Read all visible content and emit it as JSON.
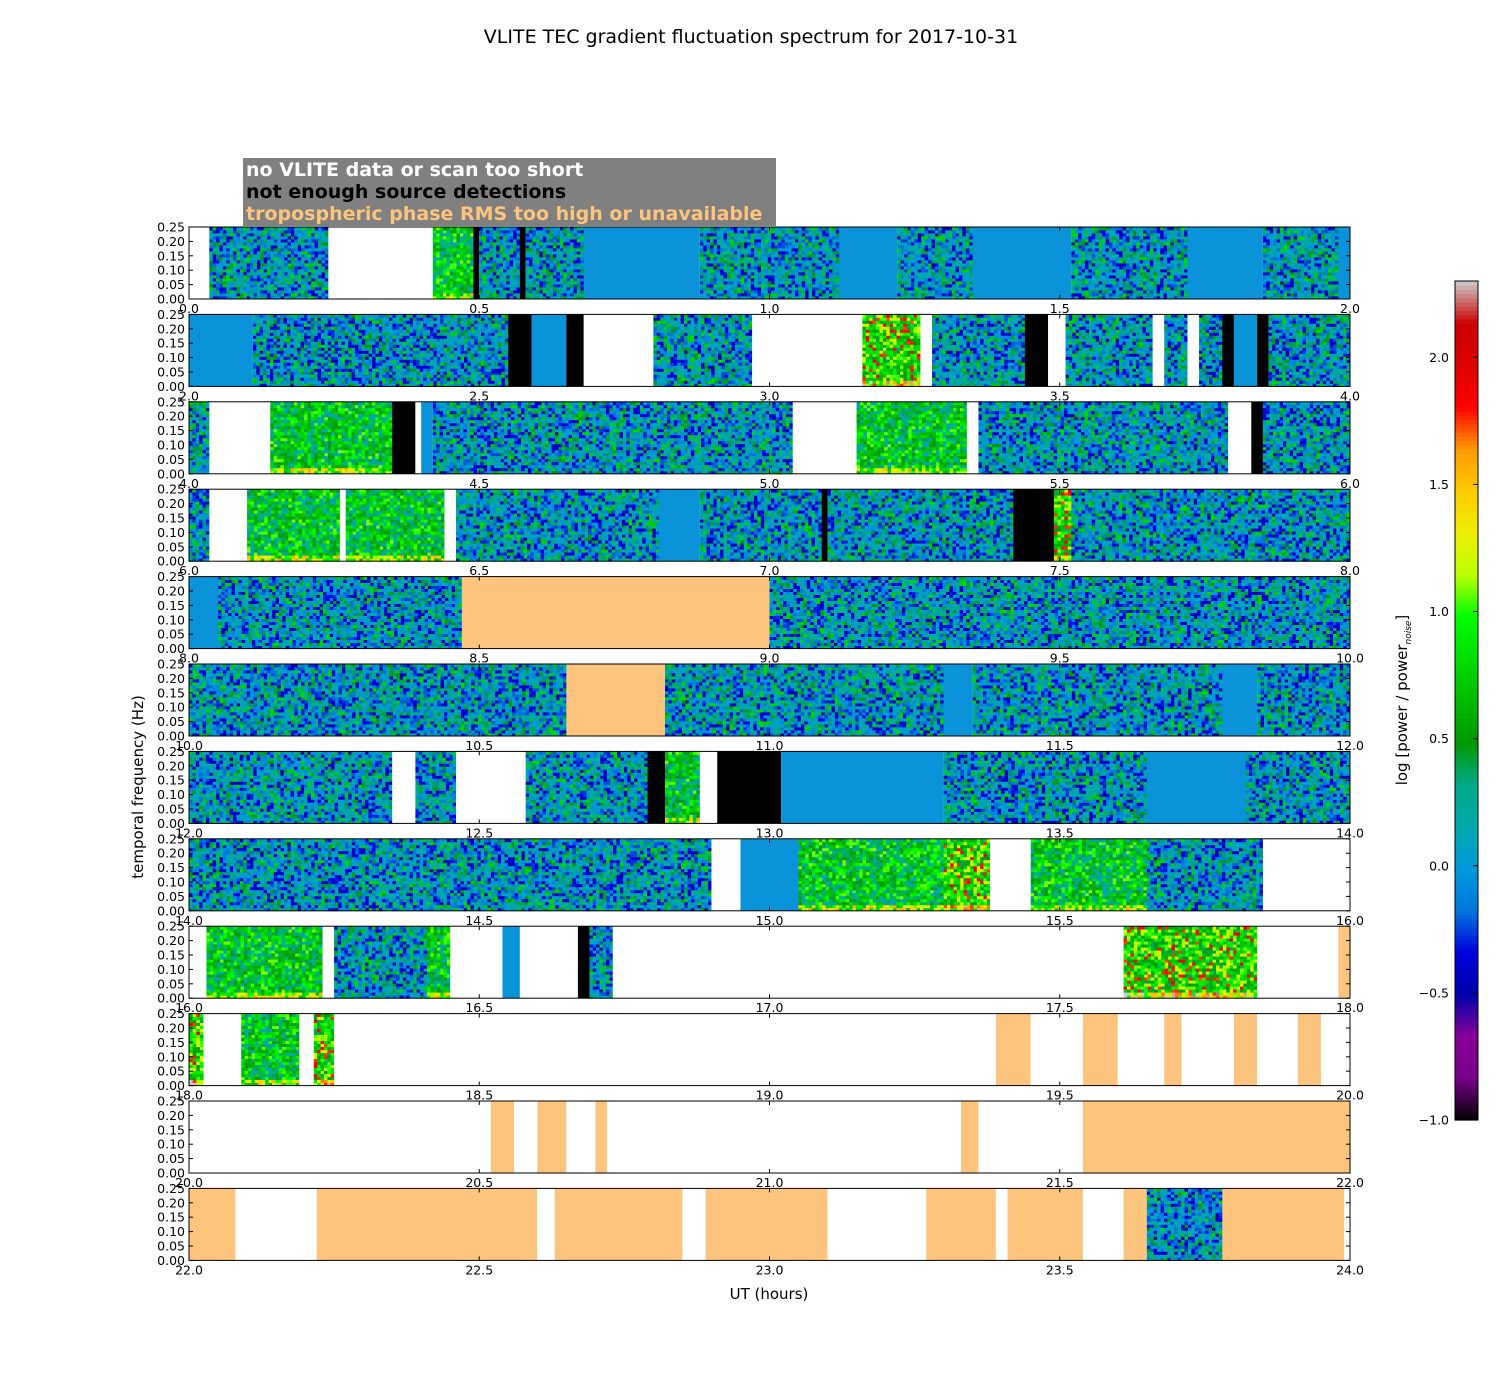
{
  "chart_data": {
    "type": "heatmap",
    "title": "VLITE TEC gradient fluctuation spectrum for 2017-10-31",
    "xlabel": "UT (hours)",
    "ylabel": "temporal frequency (Hz)",
    "ylim": [
      0.0,
      0.25
    ],
    "yticks": [
      "0.00",
      "0.05",
      "0.10",
      "0.15",
      "0.20",
      "0.25"
    ],
    "legend_placement": "top-left",
    "legend": [
      {
        "label": "no VLITE data or scan too short",
        "text_color": "#ffffff",
        "meaning": "white"
      },
      {
        "label": "not enough source detections",
        "text_color": "#000000",
        "meaning": "black"
      },
      {
        "label": "tropospheric phase RMS too high or unavailable",
        "text_color": "#fdc47d",
        "meaning": "orange"
      }
    ],
    "colors": {
      "no_data": "#ffffff",
      "few_detections": "#000000",
      "tropo_rms": "#fdc47d",
      "legend_background": "#808080",
      "flat_noise": "#0a93d8"
    },
    "colorbar": {
      "label": "log [power / power",
      "label_sub": "noise",
      "label_tail": "]",
      "range": [
        -1.0,
        2.3
      ],
      "ticks": [
        "−1.0",
        "−0.5",
        "0.0",
        "0.5",
        "1.0",
        "1.5",
        "2.0"
      ],
      "colormap": "nipy_spectral"
    },
    "panels": [
      {
        "xlim": [
          0,
          2
        ],
        "xticks": [
          "0.0",
          "0.5",
          "1.0",
          "1.5",
          "2.0"
        ],
        "segments": [
          [
            0,
            0.035,
            "W"
          ],
          [
            0.035,
            0.24,
            "D"
          ],
          [
            0.24,
            0.42,
            "W"
          ],
          [
            0.42,
            0.49,
            "G"
          ],
          [
            0.49,
            0.5,
            "K"
          ],
          [
            0.5,
            0.57,
            "D"
          ],
          [
            0.57,
            0.58,
            "K"
          ],
          [
            0.58,
            0.68,
            "D"
          ],
          [
            0.68,
            0.88,
            "F"
          ],
          [
            0.88,
            1.12,
            "D"
          ],
          [
            1.12,
            1.22,
            "F"
          ],
          [
            1.22,
            1.35,
            "D"
          ],
          [
            1.35,
            1.52,
            "F"
          ],
          [
            1.52,
            1.72,
            "D"
          ],
          [
            1.72,
            1.85,
            "F"
          ],
          [
            1.85,
            1.98,
            "D"
          ],
          [
            1.98,
            2.0,
            "F"
          ]
        ]
      },
      {
        "xlim": [
          2,
          4
        ],
        "xticks": [
          "2.0",
          "2.5",
          "3.0",
          "3.5",
          "4.0"
        ],
        "segments": [
          [
            2,
            2.11,
            "F"
          ],
          [
            2.11,
            2.55,
            "D"
          ],
          [
            2.55,
            2.59,
            "K"
          ],
          [
            2.59,
            2.65,
            "F"
          ],
          [
            2.65,
            2.68,
            "K"
          ],
          [
            2.68,
            2.8,
            "W"
          ],
          [
            2.8,
            2.97,
            "D"
          ],
          [
            2.97,
            3.16,
            "W"
          ],
          [
            3.16,
            3.26,
            "H"
          ],
          [
            3.26,
            3.28,
            "W"
          ],
          [
            3.28,
            3.44,
            "D"
          ],
          [
            3.44,
            3.48,
            "K"
          ],
          [
            3.48,
            3.51,
            "W"
          ],
          [
            3.51,
            3.66,
            "D"
          ],
          [
            3.66,
            3.68,
            "W"
          ],
          [
            3.68,
            3.72,
            "D"
          ],
          [
            3.72,
            3.74,
            "W"
          ],
          [
            3.74,
            3.78,
            "D"
          ],
          [
            3.78,
            3.8,
            "K"
          ],
          [
            3.8,
            3.84,
            "F"
          ],
          [
            3.84,
            3.86,
            "K"
          ],
          [
            3.86,
            4.0,
            "D"
          ]
        ]
      },
      {
        "xlim": [
          4,
          6
        ],
        "xticks": [
          "4.0",
          "4.5",
          "5.0",
          "5.5",
          "6.0"
        ],
        "segments": [
          [
            4,
            4.035,
            "D"
          ],
          [
            4.035,
            4.14,
            "W"
          ],
          [
            4.14,
            4.35,
            "G"
          ],
          [
            4.35,
            4.39,
            "K"
          ],
          [
            4.39,
            4.4,
            "W"
          ],
          [
            4.4,
            4.42,
            "F"
          ],
          [
            4.42,
            5.04,
            "D"
          ],
          [
            5.04,
            5.15,
            "W"
          ],
          [
            5.15,
            5.34,
            "G"
          ],
          [
            5.34,
            5.36,
            "W"
          ],
          [
            5.36,
            5.79,
            "D"
          ],
          [
            5.79,
            5.83,
            "W"
          ],
          [
            5.83,
            5.85,
            "K"
          ],
          [
            5.85,
            6.0,
            "D"
          ]
        ]
      },
      {
        "xlim": [
          6,
          8
        ],
        "xticks": [
          "6.0",
          "6.5",
          "7.0",
          "7.5",
          "8.0"
        ],
        "segments": [
          [
            6,
            6.035,
            "D"
          ],
          [
            6.035,
            6.1,
            "W"
          ],
          [
            6.1,
            6.26,
            "G"
          ],
          [
            6.26,
            6.27,
            "W"
          ],
          [
            6.27,
            6.44,
            "G"
          ],
          [
            6.44,
            6.46,
            "W"
          ],
          [
            6.46,
            6.81,
            "D"
          ],
          [
            6.81,
            6.88,
            "F"
          ],
          [
            6.88,
            7.09,
            "D"
          ],
          [
            7.09,
            7.1,
            "K"
          ],
          [
            7.1,
            7.42,
            "D"
          ],
          [
            7.42,
            7.49,
            "K"
          ],
          [
            7.49,
            7.52,
            "H"
          ],
          [
            7.52,
            8.0,
            "D"
          ]
        ]
      },
      {
        "xlim": [
          8,
          10
        ],
        "xticks": [
          "8.0",
          "8.5",
          "9.0",
          "9.5",
          "10.0"
        ],
        "segments": [
          [
            8,
            8.05,
            "F"
          ],
          [
            8.05,
            8.47,
            "D"
          ],
          [
            8.47,
            9.0,
            "O"
          ],
          [
            9.0,
            10.0,
            "D"
          ]
        ]
      },
      {
        "xlim": [
          10,
          12
        ],
        "xticks": [
          "10.0",
          "10.5",
          "11.0",
          "11.5",
          "12.0"
        ],
        "segments": [
          [
            10,
            10.65,
            "D"
          ],
          [
            10.65,
            10.82,
            "O"
          ],
          [
            10.82,
            11.3,
            "D"
          ],
          [
            11.3,
            11.35,
            "F"
          ],
          [
            11.35,
            11.78,
            "D"
          ],
          [
            11.78,
            11.84,
            "F"
          ],
          [
            11.84,
            12.0,
            "D"
          ]
        ]
      },
      {
        "xlim": [
          12,
          14
        ],
        "xticks": [
          "12.0",
          "12.5",
          "13.0",
          "13.5",
          "14.0"
        ],
        "segments": [
          [
            12,
            12.35,
            "D"
          ],
          [
            12.35,
            12.39,
            "W"
          ],
          [
            12.39,
            12.46,
            "D"
          ],
          [
            12.46,
            12.58,
            "W"
          ],
          [
            12.58,
            12.79,
            "D"
          ],
          [
            12.79,
            12.82,
            "K"
          ],
          [
            12.82,
            12.88,
            "G"
          ],
          [
            12.88,
            12.91,
            "W"
          ],
          [
            12.91,
            13.02,
            "K"
          ],
          [
            13.02,
            13.3,
            "F"
          ],
          [
            13.3,
            13.65,
            "D"
          ],
          [
            13.65,
            13.82,
            "F"
          ],
          [
            13.82,
            14.0,
            "D"
          ]
        ]
      },
      {
        "xlim": [
          14,
          16
        ],
        "xticks": [
          "14.0",
          "14.5",
          "15.0",
          "15.5",
          "16.0"
        ],
        "segments": [
          [
            14,
            14.9,
            "D"
          ],
          [
            14.9,
            14.95,
            "W"
          ],
          [
            14.95,
            15.05,
            "F"
          ],
          [
            15.05,
            15.3,
            "G"
          ],
          [
            15.3,
            15.38,
            "H"
          ],
          [
            15.38,
            15.45,
            "W"
          ],
          [
            15.45,
            15.65,
            "G"
          ],
          [
            15.65,
            15.85,
            "D"
          ],
          [
            15.85,
            16.0,
            "W"
          ]
        ]
      },
      {
        "xlim": [
          16,
          18
        ],
        "xticks": [
          "16.0",
          "16.5",
          "17.0",
          "17.5",
          "18.0"
        ],
        "segments": [
          [
            16,
            16.03,
            "W"
          ],
          [
            16.03,
            16.23,
            "G"
          ],
          [
            16.23,
            16.25,
            "W"
          ],
          [
            16.25,
            16.41,
            "D"
          ],
          [
            16.41,
            16.45,
            "G"
          ],
          [
            16.45,
            16.54,
            "W"
          ],
          [
            16.54,
            16.57,
            "F"
          ],
          [
            16.57,
            16.67,
            "W"
          ],
          [
            16.67,
            16.69,
            "K"
          ],
          [
            16.69,
            16.73,
            "D"
          ],
          [
            16.73,
            17.61,
            "W"
          ],
          [
            17.61,
            17.84,
            "H"
          ],
          [
            17.84,
            17.98,
            "W"
          ],
          [
            17.98,
            18.0,
            "O"
          ]
        ]
      },
      {
        "xlim": [
          18,
          20
        ],
        "xticks": [
          "18.0",
          "18.5",
          "19.0",
          "19.5",
          "20.0"
        ],
        "segments": [
          [
            18,
            18.025,
            "H"
          ],
          [
            18.025,
            18.09,
            "W"
          ],
          [
            18.09,
            18.19,
            "G"
          ],
          [
            18.19,
            18.215,
            "W"
          ],
          [
            18.215,
            18.25,
            "H"
          ],
          [
            18.25,
            19.39,
            "W"
          ],
          [
            19.39,
            19.45,
            "O"
          ],
          [
            19.45,
            19.54,
            "W"
          ],
          [
            19.54,
            19.6,
            "O"
          ],
          [
            19.6,
            19.68,
            "W"
          ],
          [
            19.68,
            19.71,
            "O"
          ],
          [
            19.71,
            19.8,
            "W"
          ],
          [
            19.8,
            19.84,
            "O"
          ],
          [
            19.84,
            19.91,
            "W"
          ],
          [
            19.91,
            19.95,
            "O"
          ],
          [
            19.95,
            20.0,
            "W"
          ]
        ]
      },
      {
        "xlim": [
          20,
          22
        ],
        "xticks": [
          "20.0",
          "20.5",
          "21.0",
          "21.5",
          "22.0"
        ],
        "segments": [
          [
            20,
            20.52,
            "W"
          ],
          [
            20.52,
            20.56,
            "O"
          ],
          [
            20.56,
            20.6,
            "W"
          ],
          [
            20.6,
            20.65,
            "O"
          ],
          [
            20.65,
            20.7,
            "W"
          ],
          [
            20.7,
            20.72,
            "O"
          ],
          [
            20.72,
            21.33,
            "W"
          ],
          [
            21.33,
            21.36,
            "O"
          ],
          [
            21.36,
            21.54,
            "W"
          ],
          [
            21.54,
            22.0,
            "O"
          ]
        ]
      },
      {
        "xlim": [
          22,
          24
        ],
        "xticks": [
          "22.0",
          "22.5",
          "23.0",
          "23.5",
          "24.0"
        ],
        "segments": [
          [
            22,
            22.08,
            "O"
          ],
          [
            22.08,
            22.22,
            "W"
          ],
          [
            22.22,
            22.6,
            "O"
          ],
          [
            22.6,
            22.63,
            "W"
          ],
          [
            22.63,
            22.85,
            "O"
          ],
          [
            22.85,
            22.89,
            "W"
          ],
          [
            22.89,
            23.1,
            "O"
          ],
          [
            23.1,
            23.27,
            "W"
          ],
          [
            23.27,
            23.39,
            "O"
          ],
          [
            23.39,
            23.41,
            "W"
          ],
          [
            23.41,
            23.54,
            "O"
          ],
          [
            23.54,
            23.61,
            "W"
          ],
          [
            23.61,
            23.65,
            "O"
          ],
          [
            23.65,
            23.78,
            "D"
          ],
          [
            23.78,
            23.99,
            "O"
          ],
          [
            23.99,
            24.0,
            "W"
          ]
        ]
      }
    ]
  }
}
